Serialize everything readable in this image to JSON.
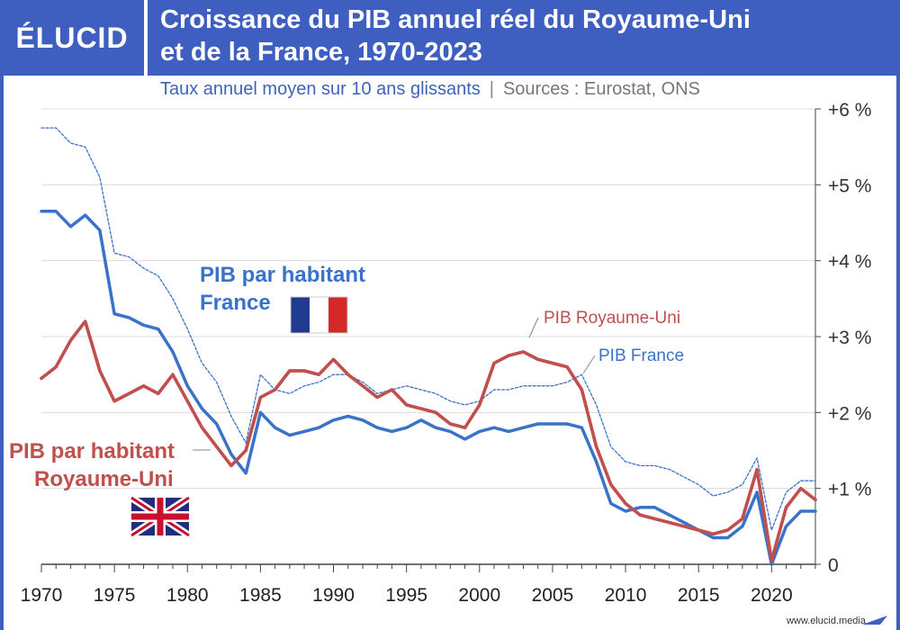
{
  "header": {
    "logo": "ÉLUCID",
    "title_line1": "Croissance du PIB annuel réel du Royaume-Uni",
    "title_line2": "et de la France, 1970-2023"
  },
  "subtitle": {
    "main": "Taux annuel moyen sur 10 ans glissants",
    "separator": "|",
    "sources": "Sources : Eurostat, ONS"
  },
  "footer": {
    "site": "www.elucid.media"
  },
  "colors": {
    "header": "#3f5fc0",
    "france": "#3a72c9",
    "uk": "#c0504d"
  },
  "chart_data": {
    "type": "line",
    "x_ticks": [
      "1970",
      "1975",
      "1980",
      "1985",
      "1990",
      "1995",
      "2000",
      "2005",
      "2010",
      "2015",
      "2020"
    ],
    "y_ticks": [
      "0",
      "+1 %",
      "+2 %",
      "+3 %",
      "+4 %",
      "+5 %",
      "+6 %"
    ],
    "ylim": [
      0,
      6
    ],
    "xlim": [
      1970,
      2023
    ],
    "grid": true,
    "y_axis_side": "right",
    "x": [
      1970,
      1971,
      1972,
      1973,
      1974,
      1975,
      1976,
      1977,
      1978,
      1979,
      1980,
      1981,
      1982,
      1983,
      1984,
      1985,
      1986,
      1987,
      1988,
      1989,
      1990,
      1991,
      1992,
      1993,
      1994,
      1995,
      1996,
      1997,
      1998,
      1999,
      2000,
      2001,
      2002,
      2003,
      2004,
      2005,
      2006,
      2007,
      2008,
      2009,
      2010,
      2011,
      2012,
      2013,
      2014,
      2015,
      2016,
      2017,
      2018,
      2019,
      2020,
      2021,
      2022,
      2023
    ],
    "series": [
      {
        "name": "PIB France",
        "style": "dashed",
        "color": "#3a72c9",
        "values": [
          5.75,
          5.75,
          5.55,
          5.5,
          5.1,
          4.1,
          4.05,
          3.9,
          3.8,
          3.5,
          3.1,
          2.65,
          2.4,
          1.95,
          1.6,
          2.5,
          2.3,
          2.25,
          2.35,
          2.4,
          2.5,
          2.5,
          2.4,
          2.25,
          2.3,
          2.35,
          2.3,
          2.25,
          2.15,
          2.1,
          2.15,
          2.3,
          2.3,
          2.35,
          2.35,
          2.35,
          2.4,
          2.5,
          2.1,
          1.55,
          1.35,
          1.3,
          1.3,
          1.25,
          1.15,
          1.05,
          0.9,
          0.95,
          1.05,
          1.4,
          0.45,
          0.95,
          1.1,
          1.1
        ]
      },
      {
        "name": "PIB par habitant France",
        "style": "solid",
        "color": "#3a72c9",
        "values": [
          4.65,
          4.65,
          4.45,
          4.6,
          4.4,
          3.3,
          3.25,
          3.15,
          3.1,
          2.8,
          2.35,
          2.05,
          1.85,
          1.45,
          1.2,
          2.0,
          1.8,
          1.7,
          1.75,
          1.8,
          1.9,
          1.95,
          1.9,
          1.8,
          1.75,
          1.8,
          1.9,
          1.8,
          1.75,
          1.65,
          1.75,
          1.8,
          1.75,
          1.8,
          1.85,
          1.85,
          1.85,
          1.8,
          1.35,
          0.8,
          0.7,
          0.75,
          0.75,
          0.65,
          0.55,
          0.45,
          0.35,
          0.35,
          0.5,
          0.95,
          0.0,
          0.5,
          0.7,
          0.7
        ]
      },
      {
        "name": "PIB Royaume-Uni",
        "style": "solid",
        "color": "#c0504d",
        "values": [
          2.45,
          2.6,
          2.95,
          3.2,
          2.55,
          2.15,
          2.25,
          2.35,
          2.25,
          2.5,
          2.15,
          1.8,
          1.55,
          1.3,
          1.5,
          2.2,
          2.3,
          2.55,
          2.55,
          2.5,
          2.7,
          2.5,
          2.35,
          2.2,
          2.3,
          2.1,
          2.05,
          2.0,
          1.85,
          1.8,
          2.1,
          2.65,
          2.75,
          2.8,
          2.7,
          2.65,
          2.6,
          2.3,
          1.55,
          1.05,
          0.8,
          0.65,
          0.6,
          0.55,
          0.5,
          0.45,
          0.4,
          0.45,
          0.6,
          1.25,
          0.05,
          0.75,
          1.0,
          0.85
        ]
      },
      {
        "name": "PIB par habitant Royaume-Uni",
        "style": "solid",
        "color": "#c0504d",
        "values": [
          2.45,
          2.6,
          2.95,
          3.2,
          2.55,
          2.15,
          2.25,
          2.35,
          2.25,
          2.5,
          2.15,
          1.8,
          1.55,
          1.3,
          1.5,
          2.2,
          2.3,
          2.55,
          2.55,
          2.5,
          2.7,
          2.5,
          2.35,
          2.2,
          2.3,
          2.1,
          2.05,
          2.0,
          1.85,
          1.8,
          2.1,
          2.65,
          2.75,
          2.8,
          2.7,
          2.65,
          2.6,
          2.3,
          1.55,
          1.05,
          0.8,
          0.65,
          0.6,
          0.55,
          0.5,
          0.45,
          0.4,
          0.45,
          0.6,
          1.25,
          0.05,
          0.75,
          1.0,
          0.85
        ]
      }
    ],
    "annotations": {
      "fr_pc_line1": "PIB par habitant",
      "fr_pc_line2": "France",
      "uk_pc_line1": "PIB par habitant",
      "uk_pc_line2": "Royaume-Uni",
      "uk_total": "PIB Royaume-Uni",
      "fr_total": "PIB France"
    }
  }
}
